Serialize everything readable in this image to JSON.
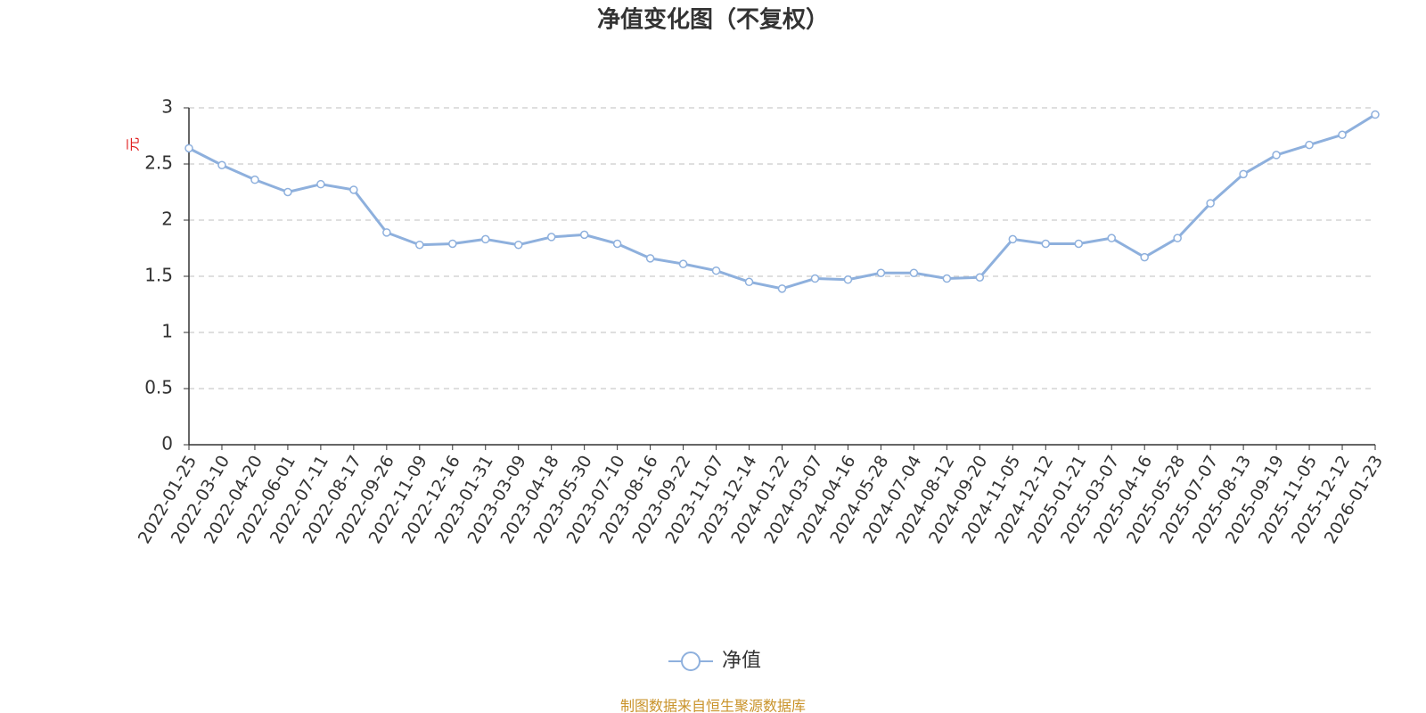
{
  "chart_data": {
    "type": "line",
    "title": "净值变化图（不复权）",
    "y_axis_label": "元",
    "categories": [
      "2022-01-25",
      "2022-03-10",
      "2022-04-20",
      "2022-06-01",
      "2022-07-11",
      "2022-08-17",
      "2022-09-26",
      "2022-11-09",
      "2022-12-16",
      "2023-01-31",
      "2023-03-09",
      "2023-04-18",
      "2023-05-30",
      "2023-07-10",
      "2023-08-16",
      "2023-09-22",
      "2023-11-07",
      "2023-12-14",
      "2024-01-22",
      "2024-03-07",
      "2024-04-16",
      "2024-05-28",
      "2024-07-04",
      "2024-08-12",
      "2024-09-20",
      "2024-11-05",
      "2024-12-12",
      "2025-01-21",
      "2025-03-07",
      "2025-04-16",
      "2025-05-28",
      "2025-07-07",
      "2025-08-13",
      "2025-09-19",
      "2025-11-05",
      "2025-12-12",
      "2026-01-23"
    ],
    "series": [
      {
        "name": "净值",
        "color": "#8eb0dd",
        "values": [
          2.64,
          2.49,
          2.36,
          2.25,
          2.32,
          2.27,
          1.89,
          1.78,
          1.79,
          1.83,
          1.78,
          1.85,
          1.87,
          1.79,
          1.66,
          1.61,
          1.55,
          1.45,
          1.39,
          1.48,
          1.47,
          1.53,
          1.53,
          1.48,
          1.49,
          1.83,
          1.79,
          1.79,
          1.84,
          1.67,
          1.84,
          2.15,
          2.41,
          2.58,
          2.67,
          2.76,
          2.94
        ]
      }
    ],
    "ylim": [
      0,
      3
    ],
    "yticks": [
      0,
      0.5,
      1,
      1.5,
      2,
      2.5,
      3
    ],
    "grid": true,
    "footer": "制图数据来自恒生聚源数据库"
  }
}
